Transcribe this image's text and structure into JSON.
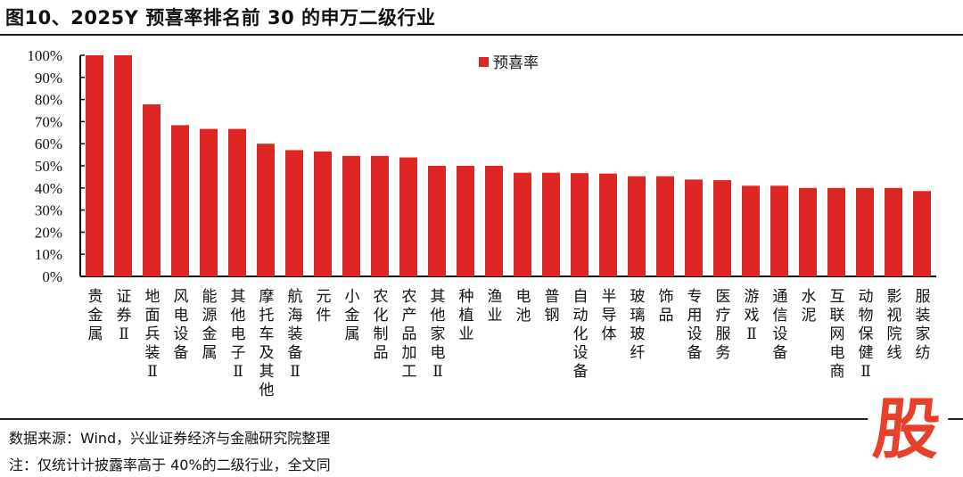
{
  "title": "图10、2025Y 预喜率排名前 30 的申万二级行业",
  "footer": {
    "source": "数据来源：Wind，兴业证券经济与金融研究院整理",
    "note": "注：仅统计计披露率高于 40%的二级行业，全文同"
  },
  "logo_text": "股",
  "chart_data": {
    "type": "bar",
    "title": "",
    "xlabel": "",
    "ylabel": "",
    "ylim": [
      0,
      100
    ],
    "yticks": [
      "0%",
      "10%",
      "20%",
      "30%",
      "40%",
      "50%",
      "60%",
      "70%",
      "80%",
      "90%",
      "100%"
    ],
    "grid": false,
    "legend_position": "top-center",
    "colors": {
      "bar": "#de2622"
    },
    "categories": [
      "贵金属",
      "证券Ⅱ",
      "地面兵装Ⅱ",
      "风电设备",
      "能源金属",
      "其他电子Ⅱ",
      "摩托车及其他",
      "航海装备Ⅱ",
      "元件",
      "小金属",
      "农化制品",
      "农产品加工",
      "其他家电Ⅱ",
      "种植业",
      "渔业",
      "电池",
      "普钢",
      "自动化设备",
      "半导体",
      "玻璃玻纤",
      "饰品",
      "专用设备",
      "医疗服务",
      "游戏Ⅱ",
      "通信设备",
      "水泥",
      "互联网电商",
      "动物保健Ⅱ",
      "影视院线",
      "服装家纺"
    ],
    "series": [
      {
        "name": "预喜率",
        "values": [
          100,
          100,
          77.8,
          68.4,
          66.7,
          66.7,
          60,
          57.1,
          56.5,
          54.5,
          54.5,
          53.8,
          50,
          50,
          50,
          46.9,
          46.9,
          46.7,
          46.5,
          45.3,
          45.3,
          43.8,
          43.5,
          41,
          41,
          40,
          40,
          40,
          40,
          38.6
        ]
      }
    ]
  }
}
